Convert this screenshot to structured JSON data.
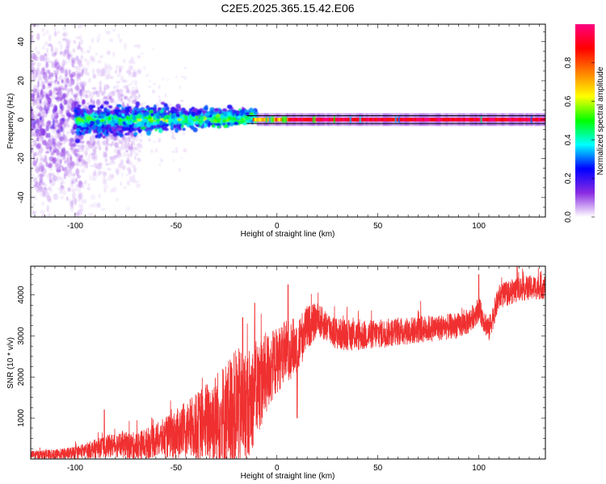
{
  "title": "C2E5.2025.365.15.42.E06",
  "chart_data": [
    {
      "type": "heatmap",
      "name": "spectrogram",
      "xlabel": "Height of straight line (km)",
      "ylabel": "Frequency (Hz)",
      "xlim": [
        -122,
        133
      ],
      "ylim": [
        -50,
        49
      ],
      "xticks": [
        -100,
        -50,
        0,
        50,
        100
      ],
      "xtick_labels": [
        "-100",
        "-50",
        "0",
        "50",
        "100"
      ],
      "yticks": [
        -40,
        -20,
        0,
        20,
        40
      ],
      "ytick_labels": [
        "-40",
        "-20",
        "0",
        "20",
        "40"
      ],
      "line_band_hz": [
        -2,
        2
      ],
      "colorbar": {
        "label": "Normalized spectral amplitude",
        "range": [
          0,
          1
        ],
        "ticks": [
          0.0,
          0.2,
          0.4,
          0.6,
          0.8
        ],
        "tick_labels": [
          "0.0",
          "0.2",
          "0.4",
          "0.6",
          "0.8"
        ],
        "stops": [
          "#ffffff",
          "#8a2be2",
          "#0000ff",
          "#00ffff",
          "#00ff00",
          "#ffff00",
          "#ff8000",
          "#ff0000",
          "#ff0080"
        ]
      },
      "features": [
        {
          "x_range": [
            -122,
            -100
          ],
          "freq_spread_hz": 49,
          "amplitude": 0.15,
          "note": "broadband scatter"
        },
        {
          "x_range": [
            -100,
            -70
          ],
          "freq_spread_hz": 30,
          "amplitude": 0.1
        },
        {
          "x_range": [
            -100,
            -10
          ],
          "freq_spread_hz": 8,
          "amplitude": 0.35,
          "note": "dense core near 0 Hz"
        },
        {
          "x_range": [
            -10,
            133
          ],
          "freq_spread_hz": 1,
          "amplitude": 0.95,
          "note": "narrow line at 0 Hz"
        }
      ]
    },
    {
      "type": "line",
      "name": "snr",
      "xlabel": "Height of straight line (km)",
      "ylabel": "SNR (10 * v/v)",
      "xlim": [
        -122,
        133
      ],
      "ylim": [
        0,
        4700
      ],
      "xticks": [
        -100,
        -50,
        0,
        50,
        100
      ],
      "xtick_labels": [
        "-100",
        "-50",
        "0",
        "50",
        "100"
      ],
      "yticks": [
        1000,
        2000,
        3000,
        4000
      ],
      "ytick_labels": [
        "1000",
        "2000",
        "3000",
        "4000"
      ],
      "color": "#f03030",
      "trend": {
        "x": [
          -122,
          -110,
          -100,
          -90,
          -80,
          -70,
          -60,
          -50,
          -40,
          -30,
          -20,
          -15,
          -10,
          -5,
          0,
          5,
          10,
          15,
          20,
          30,
          40,
          50,
          60,
          70,
          80,
          90,
          95,
          100,
          105,
          110,
          120,
          133
        ],
        "y": [
          100,
          100,
          150,
          250,
          350,
          300,
          450,
          600,
          800,
          1000,
          1200,
          1300,
          1700,
          2100,
          2400,
          2650,
          2750,
          3200,
          3400,
          3050,
          3000,
          3050,
          3100,
          3150,
          3200,
          3250,
          3350,
          3650,
          3150,
          3950,
          4150,
          4200
        ]
      },
      "noise_amplitude": {
        "x": [
          -122,
          -100,
          -80,
          -60,
          -40,
          -20,
          -10,
          0,
          10,
          20,
          50,
          100,
          133
        ],
        "y": [
          100,
          150,
          300,
          400,
          800,
          1500,
          1200,
          800,
          700,
          400,
          350,
          300,
          300
        ]
      },
      "spikes": [
        {
          "x": -85.5,
          "y": 1200
        },
        {
          "x": -62,
          "y": 1000
        },
        {
          "x": -17,
          "y": 3450
        },
        {
          "x": -11,
          "y": 3800
        },
        {
          "x": 5.5,
          "y": 4250
        },
        {
          "x": 10,
          "y": 1000
        },
        {
          "x": 100,
          "y": 4500
        },
        {
          "x": 119,
          "y": 4700
        }
      ]
    }
  ]
}
